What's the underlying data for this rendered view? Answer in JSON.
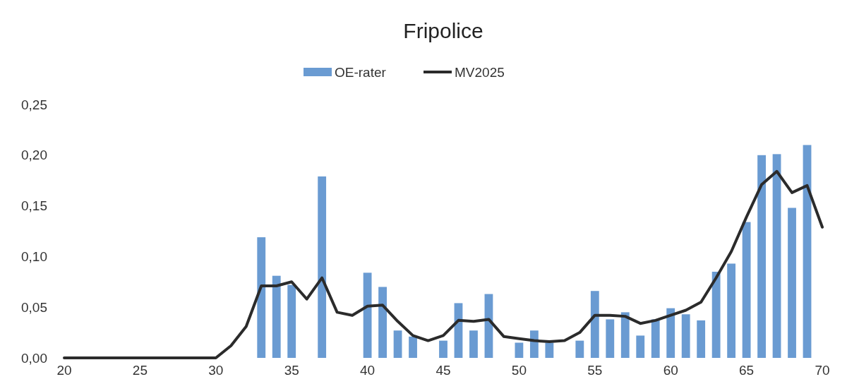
{
  "chart_data": {
    "type": "bar",
    "title": "Fripolice",
    "x": [
      20,
      21,
      22,
      23,
      24,
      25,
      26,
      27,
      28,
      29,
      30,
      31,
      32,
      33,
      34,
      35,
      36,
      37,
      38,
      39,
      40,
      41,
      42,
      43,
      44,
      45,
      46,
      47,
      48,
      49,
      50,
      51,
      52,
      53,
      54,
      55,
      56,
      57,
      58,
      59,
      60,
      61,
      62,
      63,
      64,
      65,
      66,
      67,
      68,
      69,
      70
    ],
    "series": [
      {
        "name": "OE-rater",
        "color": "#6a9bd2",
        "values": [
          null,
          null,
          null,
          null,
          null,
          null,
          null,
          null,
          null,
          null,
          null,
          null,
          null,
          0.119,
          0.081,
          0.072,
          null,
          0.179,
          null,
          null,
          0.084,
          0.07,
          0.027,
          0.021,
          null,
          0.017,
          0.054,
          0.027,
          0.063,
          null,
          0.015,
          0.027,
          0.015,
          null,
          0.017,
          0.066,
          0.038,
          0.045,
          0.022,
          0.038,
          0.049,
          0.043,
          0.037,
          0.085,
          0.093,
          0.134,
          0.2,
          0.201,
          0.148,
          0.21,
          null
        ]
      },
      {
        "name": "MV2025",
        "type": "line",
        "color": "#2b2b2b",
        "values": [
          0,
          0,
          0,
          0,
          0,
          0,
          0,
          0,
          0,
          0,
          0,
          0.012,
          0.031,
          0.071,
          0.071,
          0.075,
          0.058,
          0.079,
          0.045,
          0.042,
          0.051,
          0.052,
          0.036,
          0.022,
          0.017,
          0.022,
          0.037,
          0.036,
          0.038,
          0.021,
          0.019,
          0.017,
          0.016,
          0.017,
          0.025,
          0.042,
          0.042,
          0.041,
          0.034,
          0.037,
          0.042,
          0.047,
          0.055,
          0.079,
          0.105,
          0.139,
          0.171,
          0.184,
          0.163,
          0.17,
          0.129
        ]
      }
    ],
    "xlim": [
      20,
      70
    ],
    "xticks": [
      20,
      25,
      30,
      35,
      40,
      45,
      50,
      55,
      60,
      65,
      70
    ],
    "ylim": [
      0,
      0.25
    ],
    "yticks": [
      {
        "value": 0,
        "label": "0,00"
      },
      {
        "value": 0.05,
        "label": "0,05"
      },
      {
        "value": 0.1,
        "label": "0,10"
      },
      {
        "value": 0.15,
        "label": "0,15"
      },
      {
        "value": 0.2,
        "label": "0,20"
      },
      {
        "value": 0.25,
        "label": "0,25"
      }
    ],
    "legend": "top"
  }
}
